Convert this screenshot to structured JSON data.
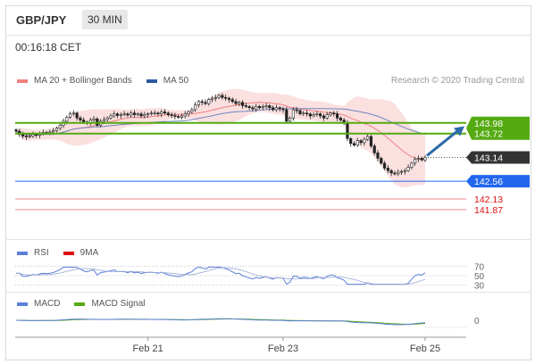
{
  "header": {
    "symbol": "GBP/JPY",
    "interval": "30 MIN",
    "time": "00:16:18 CET"
  },
  "legends": {
    "main": [
      {
        "label": "MA 20 + Bollinger Bands",
        "color": "#f08080"
      },
      {
        "label": "MA 50",
        "color": "#2c5aa0"
      }
    ],
    "rsi": [
      {
        "label": "RSI",
        "color": "#5b7fd6"
      },
      {
        "label": "9MA",
        "color": "#dd1111"
      }
    ],
    "macd": [
      {
        "label": "MACD",
        "color": "#5b7fd6"
      },
      {
        "label": "MACD Signal",
        "color": "#55aa11"
      }
    ]
  },
  "copyright": "Research © 2020 Trading Central",
  "chart_data": {
    "type": "candlestick",
    "ylim": [
      141.5,
      144.8
    ],
    "x_ticks": [
      {
        "label": "Feb 21",
        "index": 39
      },
      {
        "label": "Feb 23",
        "index": 79
      },
      {
        "label": "Feb 25",
        "index": 121
      }
    ],
    "levels": [
      {
        "label": "143.98",
        "value": 143.98,
        "color": "#55aa11",
        "tag_bg": "#55aa11",
        "tag_color": "#ffffff",
        "kind": "resistance"
      },
      {
        "label": "143.72",
        "value": 143.72,
        "color": "#55aa11",
        "tag_bg": "#55aa11",
        "tag_color": "#ffffff",
        "kind": "resistance"
      },
      {
        "label": "143.14",
        "value": 143.14,
        "color": "#333333",
        "tag_bg": "#333333",
        "tag_color": "#ffffff",
        "kind": "last"
      },
      {
        "label": "142.56",
        "value": 142.56,
        "color": "#2266ee",
        "tag_bg": "#2266ee",
        "tag_color": "#ffffff",
        "kind": "pivot"
      },
      {
        "label": "142.13",
        "value": 142.13,
        "color": "#ee8888",
        "tag_bg": "",
        "tag_color": "#dd1111",
        "kind": "support"
      },
      {
        "label": "141.87",
        "value": 141.87,
        "color": "#ee8888",
        "tag_bg": "",
        "tag_color": "#dd1111",
        "kind": "support"
      }
    ],
    "closes": [
      143.78,
      143.7,
      143.66,
      143.64,
      143.66,
      143.7,
      143.68,
      143.72,
      143.75,
      143.74,
      143.76,
      143.79,
      143.85,
      143.92,
      144.02,
      144.12,
      144.2,
      144.22,
      144.1,
      144.05,
      144.0,
      143.98,
      144.05,
      144.08,
      143.92,
      144.02,
      144.06,
      144.1,
      144.15,
      144.2,
      144.16,
      144.18,
      144.2,
      144.17,
      144.22,
      144.18,
      144.2,
      144.15,
      144.18,
      144.2,
      144.22,
      144.22,
      144.2,
      144.25,
      144.22,
      144.18,
      144.16,
      144.14,
      144.12,
      144.15,
      144.2,
      144.25,
      144.3,
      144.42,
      144.5,
      144.48,
      144.45,
      144.55,
      144.58,
      144.6,
      144.65,
      144.6,
      144.58,
      144.55,
      144.5,
      144.45,
      144.48,
      144.4,
      144.38,
      144.35,
      144.32,
      144.38,
      144.35,
      144.38,
      144.4,
      144.35,
      144.3,
      144.35,
      144.32,
      144.3,
      144.02,
      144.1,
      144.3,
      144.28,
      144.2,
      144.22,
      144.2,
      144.15,
      144.18,
      144.2,
      144.15,
      144.1,
      144.18,
      144.22,
      144.2,
      144.1,
      144.05,
      143.98,
      143.6,
      143.48,
      143.44,
      143.55,
      143.5,
      143.58,
      143.65,
      143.42,
      143.25,
      143.12,
      143.0,
      142.88,
      142.82,
      142.76,
      142.74,
      142.78,
      142.8,
      142.82,
      142.9,
      143.0,
      143.1,
      143.12,
      143.08,
      143.14
    ],
    "rsi_levels": [
      {
        "label": "70",
        "value": 70
      },
      {
        "label": "50",
        "value": 50
      },
      {
        "label": "30",
        "value": 30
      }
    ],
    "macd_levels": [
      {
        "label": "0",
        "value": 0
      }
    ]
  }
}
